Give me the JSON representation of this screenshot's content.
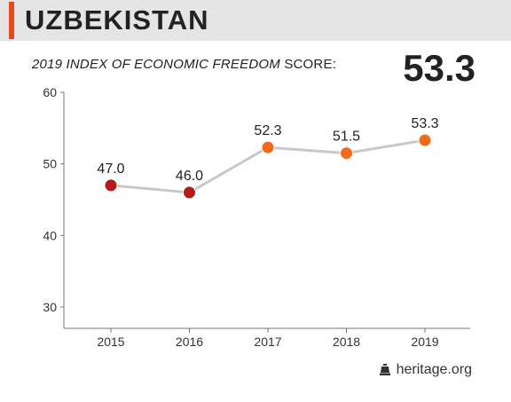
{
  "header": {
    "country": "UZBEKISTAN",
    "subtitle_italic": "2019 INDEX OF ECONOMIC FREEDOM",
    "subtitle_rest": " SCORE:",
    "score": "53.3"
  },
  "footer": {
    "brand": "heritage.org",
    "icon": "liberty-bell-icon"
  },
  "colors": {
    "accent": "#e8491d",
    "past": "#b51a1a",
    "recent": "#f26a1b",
    "line": "#c8c8c8"
  },
  "chart_data": {
    "type": "line",
    "x": [
      "2015",
      "2016",
      "2017",
      "2018",
      "2019"
    ],
    "values": [
      47.0,
      46.0,
      52.3,
      51.5,
      53.3
    ],
    "labels": [
      "47.0",
      "46.0",
      "52.3",
      "51.5",
      "53.3"
    ],
    "point_colors": [
      "#b51a1a",
      "#b51a1a",
      "#f26a1b",
      "#f26a1b",
      "#f26a1b"
    ],
    "ylim": [
      30,
      60
    ],
    "yticks": [
      "30",
      "40",
      "50",
      "60"
    ],
    "grid": false,
    "xlabel": "",
    "ylabel": ""
  }
}
